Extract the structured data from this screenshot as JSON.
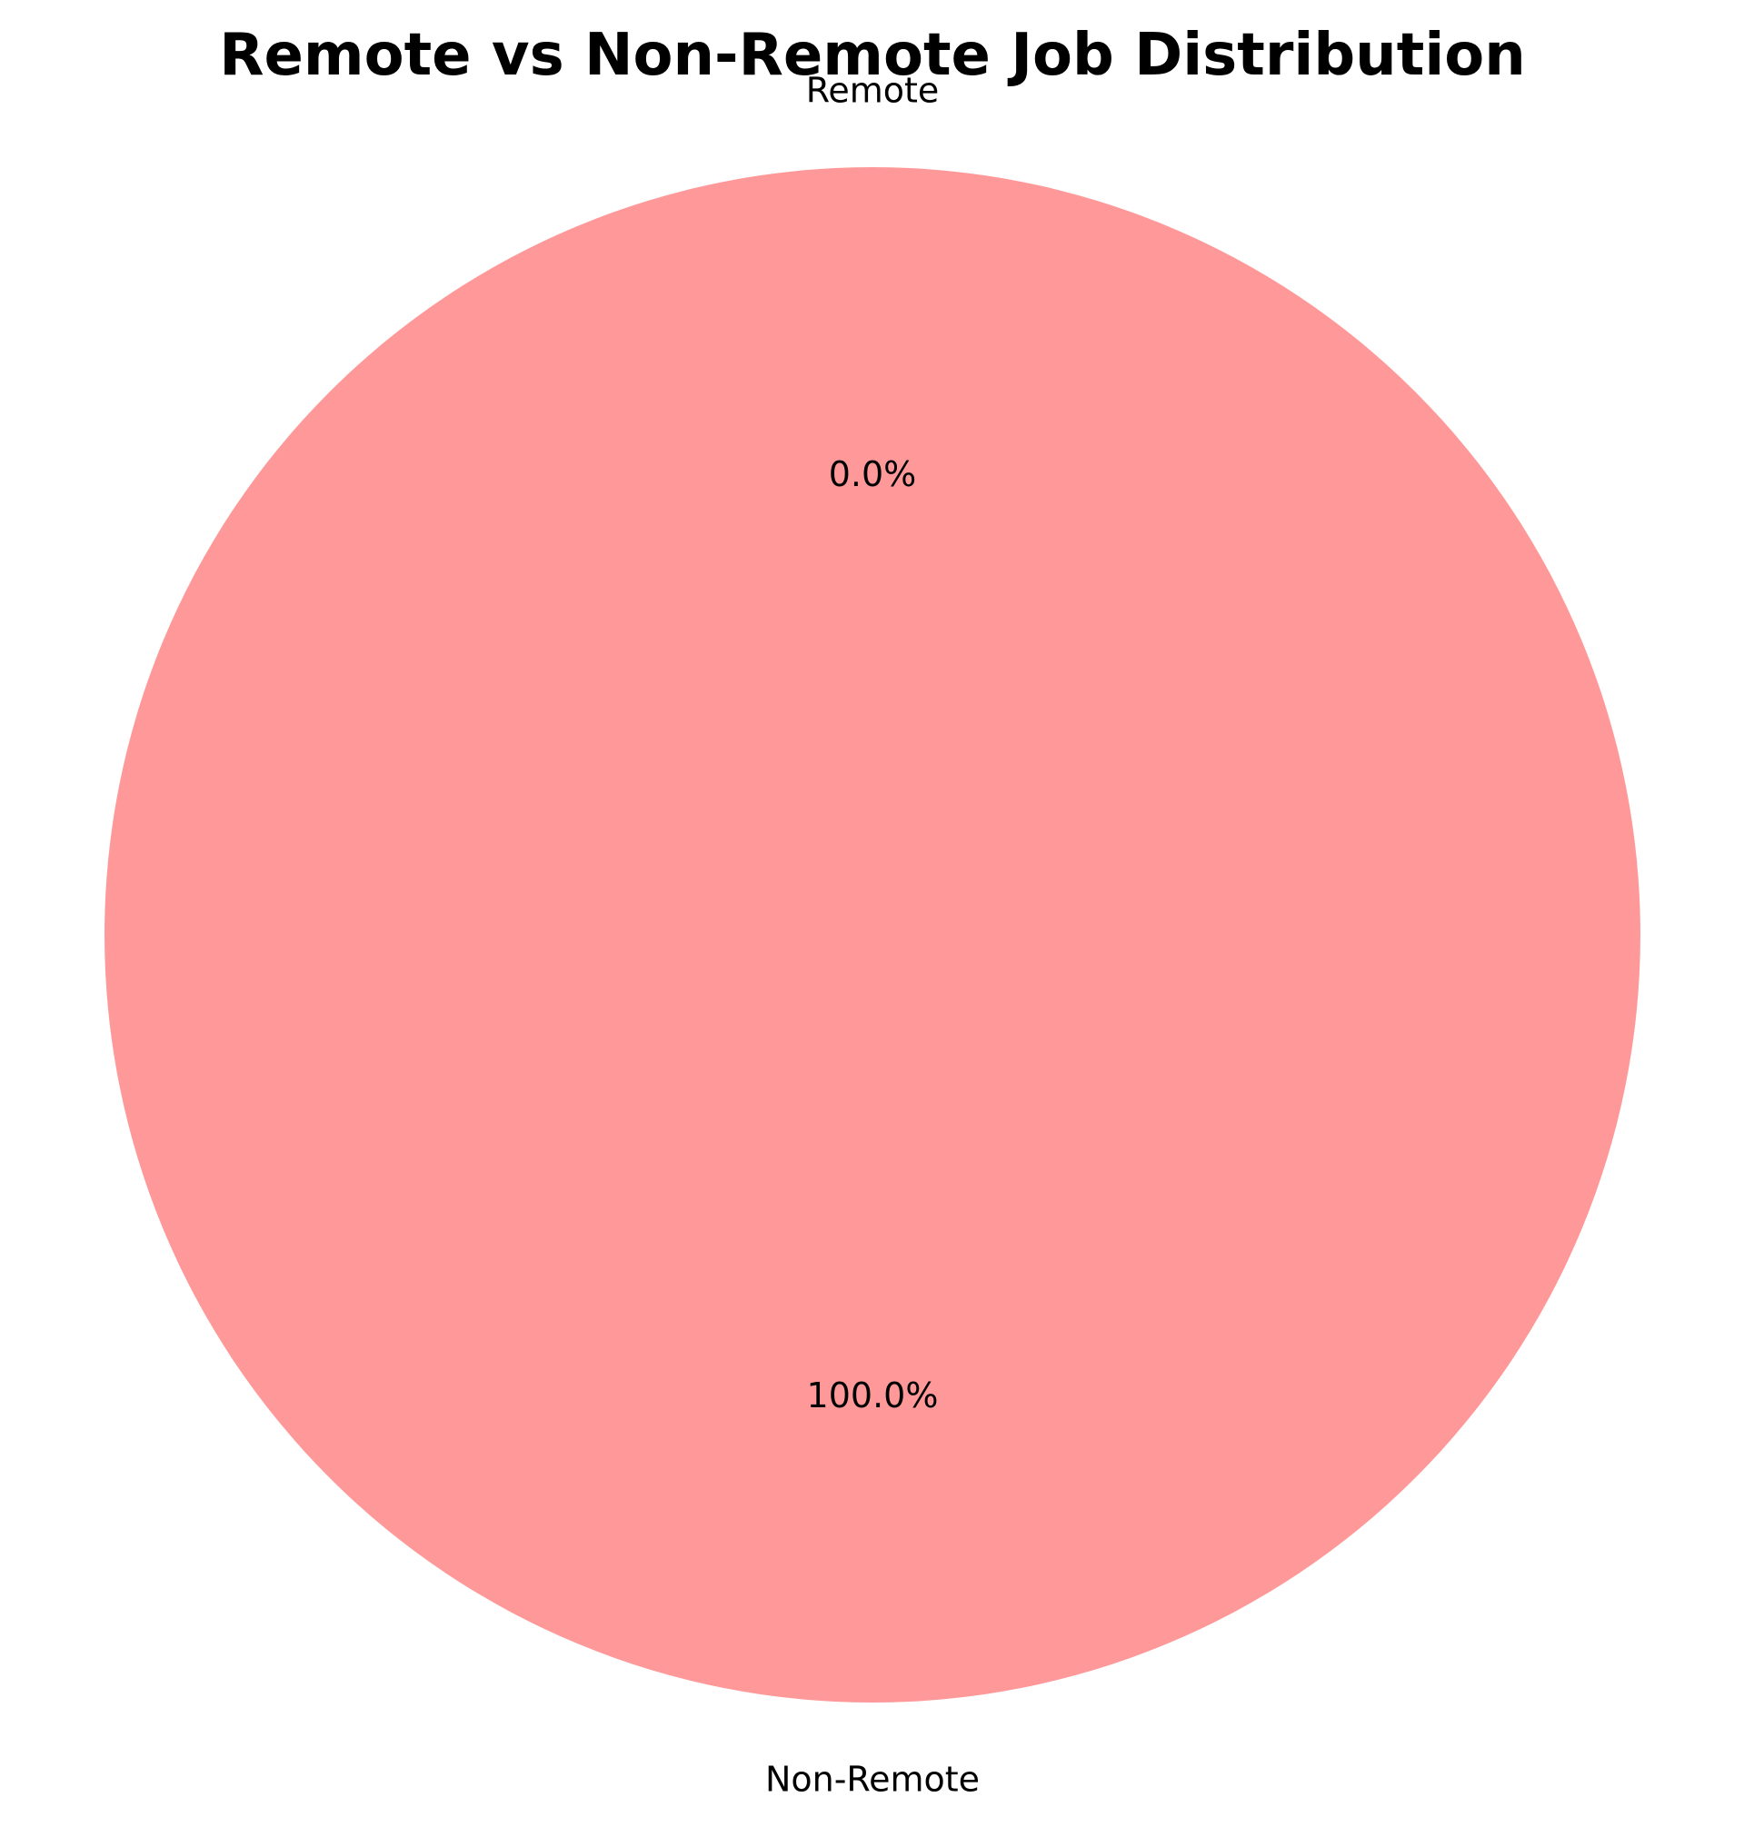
{
  "chart_data": {
    "type": "pie",
    "title": "Remote vs Non-Remote Job Distribution",
    "slices": [
      {
        "label": "Remote",
        "value": 0.0,
        "pct_label": "0.0%",
        "color": "#66b3ff"
      },
      {
        "label": "Non-Remote",
        "value": 100.0,
        "pct_label": "100.0%",
        "color": "#ff9999"
      }
    ],
    "start_angle_deg": 90,
    "legend": "none"
  }
}
